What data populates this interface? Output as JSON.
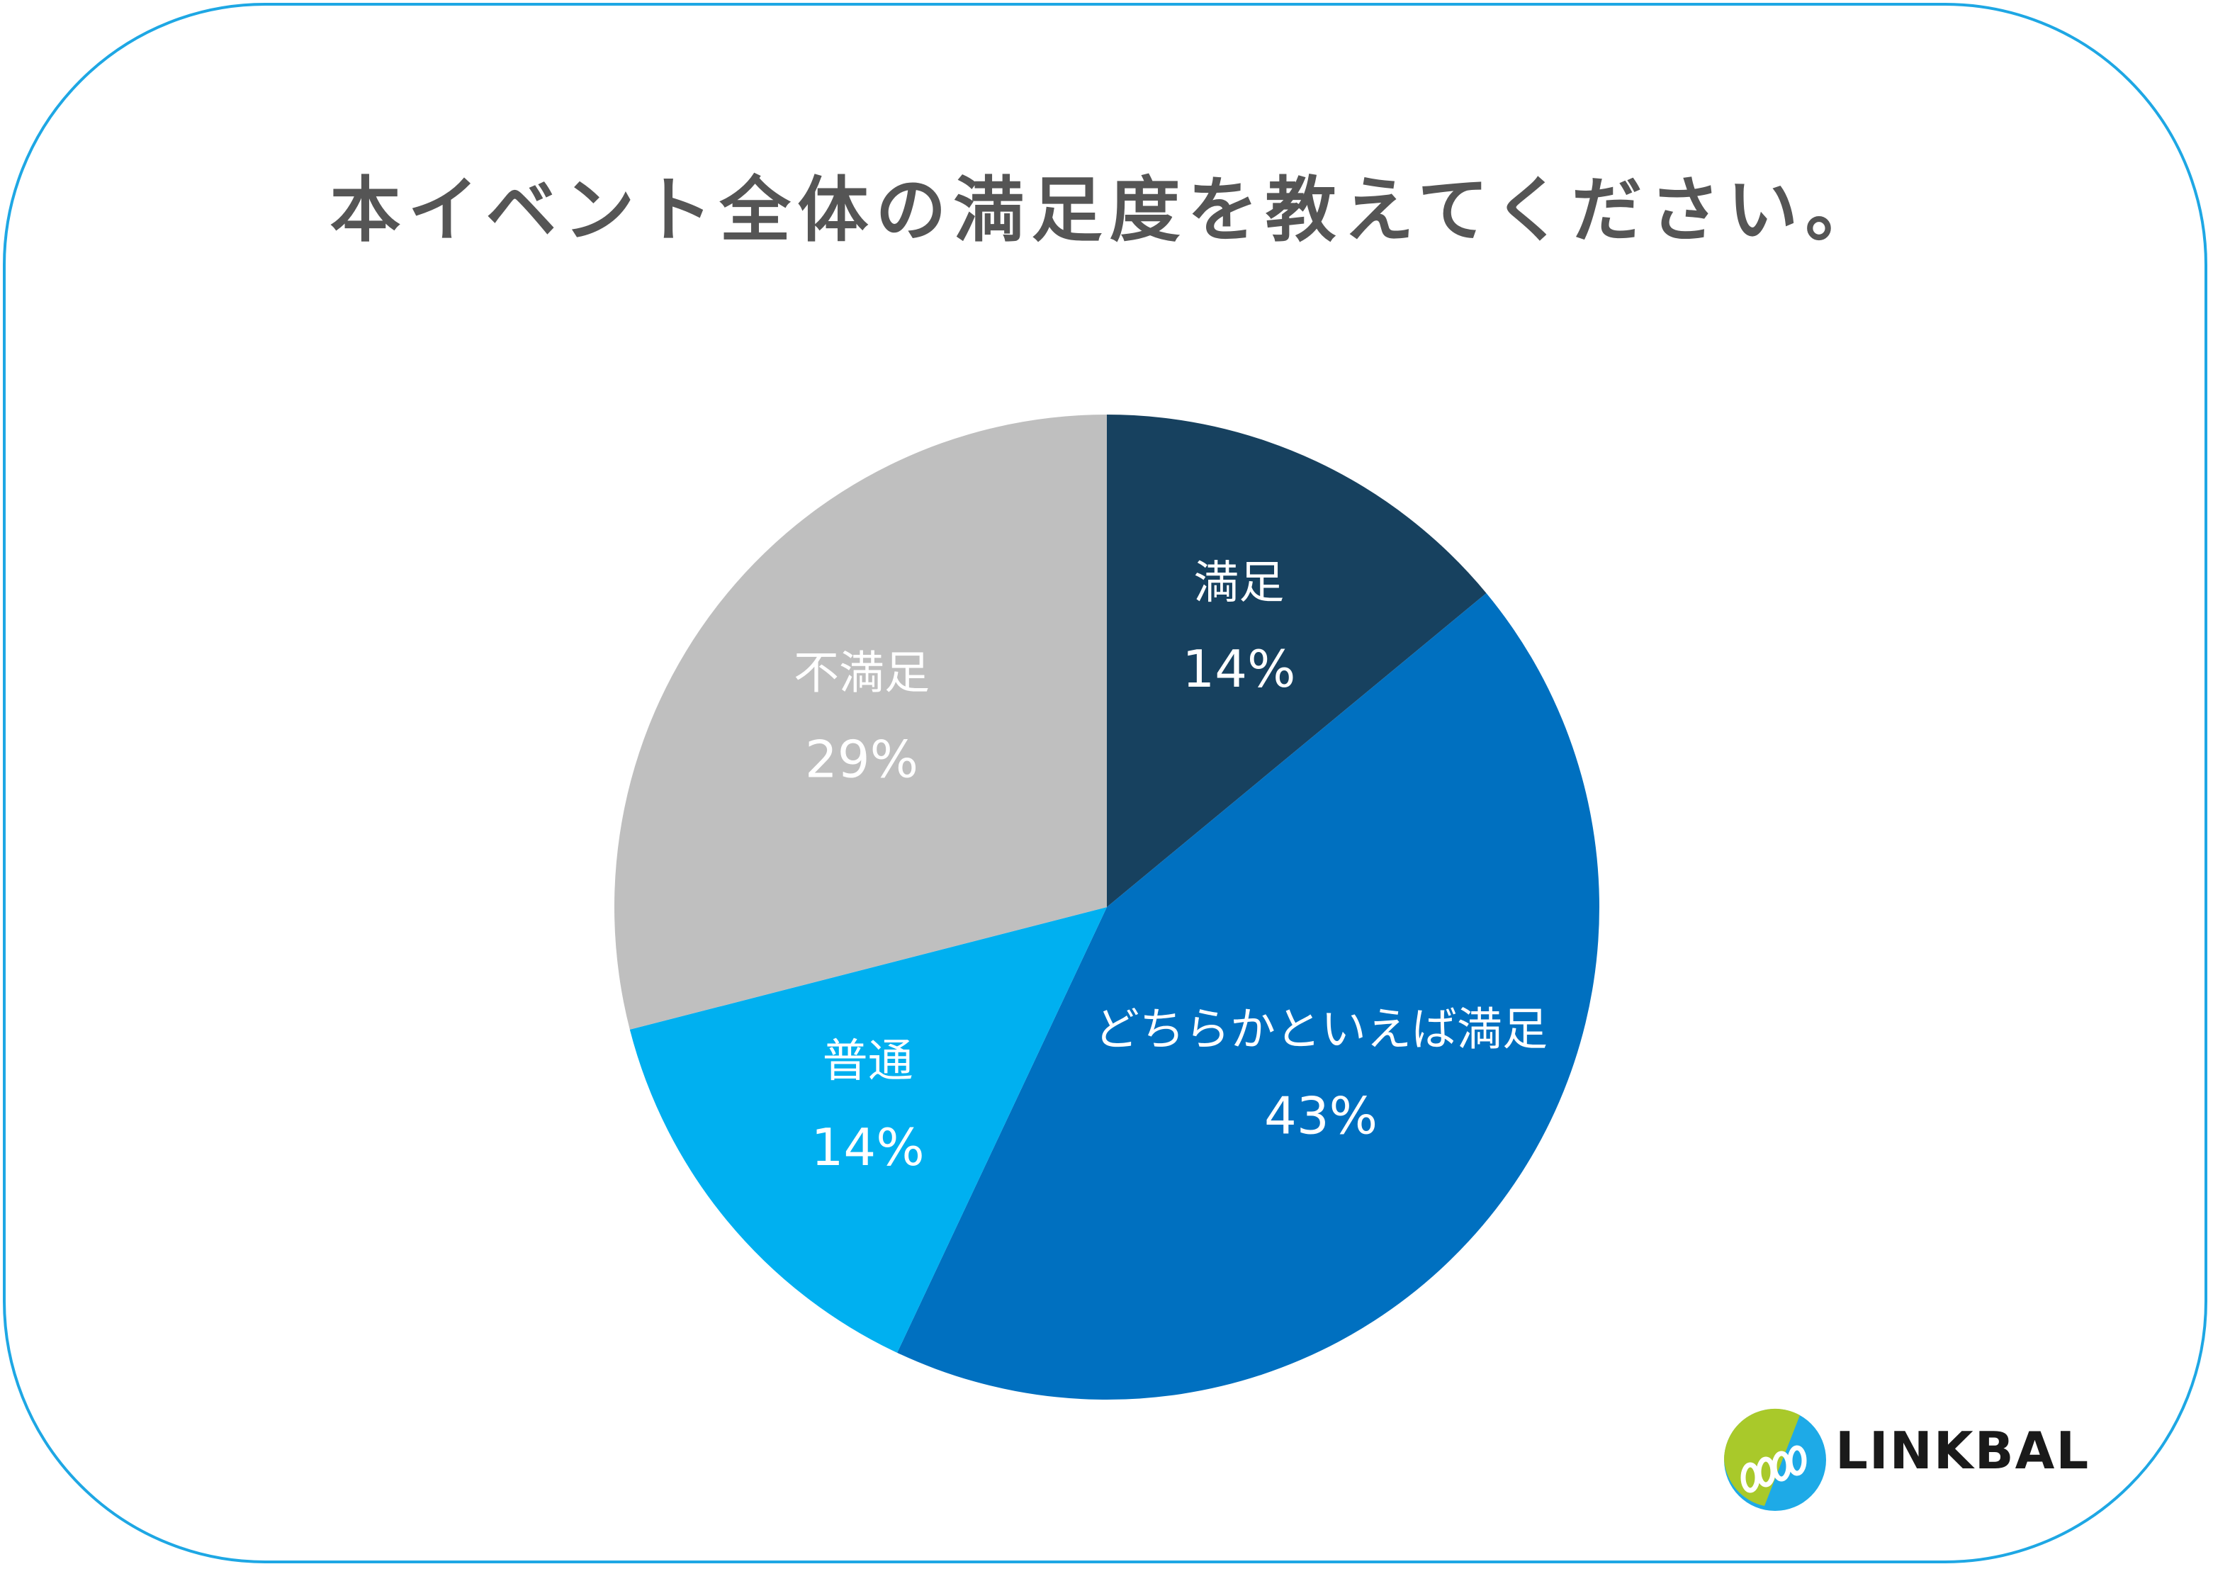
{
  "header": {
    "title": "本イベント全体の満足度を教えてください。"
  },
  "colors": {
    "border": "#1ea7e4",
    "title": "#555555",
    "slice_1": "#17415f",
    "slice_2": "#0070c0",
    "slice_3": "#00b0f0",
    "slice_4": "#bfbfbf",
    "label": "#ffffff"
  },
  "chart_data": {
    "type": "pie",
    "title": "本イベント全体の満足度を教えてください。",
    "start_angle": "12 o'clock",
    "direction": "clockwise",
    "categories": [
      "満足",
      "どちらかといえば満足",
      "普通",
      "不満足"
    ],
    "values": [
      14,
      43,
      14,
      29
    ],
    "labels": [
      "14%",
      "43%",
      "14%",
      "29%"
    ],
    "unit": "%"
  },
  "logo": {
    "brand": "LINKBAL"
  }
}
